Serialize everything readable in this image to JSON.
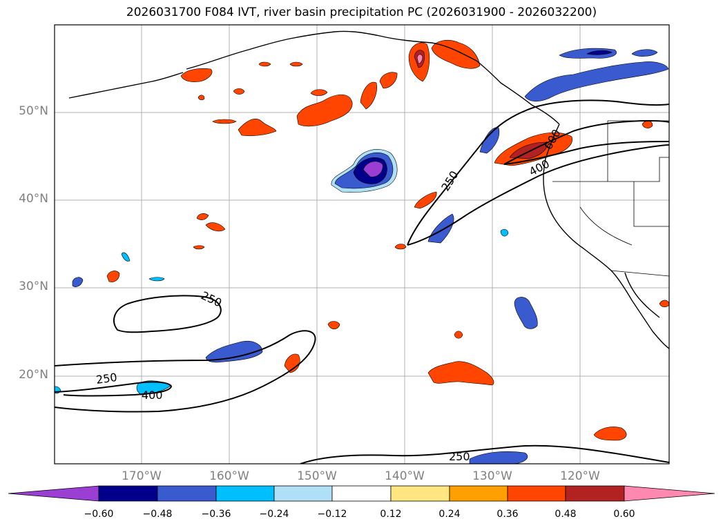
{
  "title": "2026031700 F084 IVT, river basin precipitation PC (2026031900 - 2026032200)",
  "colors": {
    "c_neg060": "#9b3fd4",
    "c_neg048": "#00008b",
    "c_neg036": "#3a5bd0",
    "c_neg024": "#00bfff",
    "c_neg012": "#b0e0f8",
    "c_zero": "#ffffff",
    "c_pos012": "#ffe680",
    "c_pos024": "#ff9f00",
    "c_pos036": "#ff4500",
    "c_pos048": "#b22222",
    "c_pos060": "#ff88b0",
    "grid": "#b0b0b0"
  },
  "lat_labels": [
    "50°N",
    "40°N",
    "30°N",
    "20°N"
  ],
  "lon_labels": [
    "170°W",
    "160°W",
    "150°W",
    "140°W",
    "130°W",
    "120°W"
  ],
  "colorbar_ticks": [
    "−0.60",
    "−0.48",
    "−0.36",
    "−0.24",
    "−0.12",
    "0.12",
    "0.24",
    "0.36",
    "0.48",
    "0.60"
  ],
  "contour_labels": [
    "250",
    "250",
    "400",
    "250",
    "400",
    "600",
    "250"
  ]
}
